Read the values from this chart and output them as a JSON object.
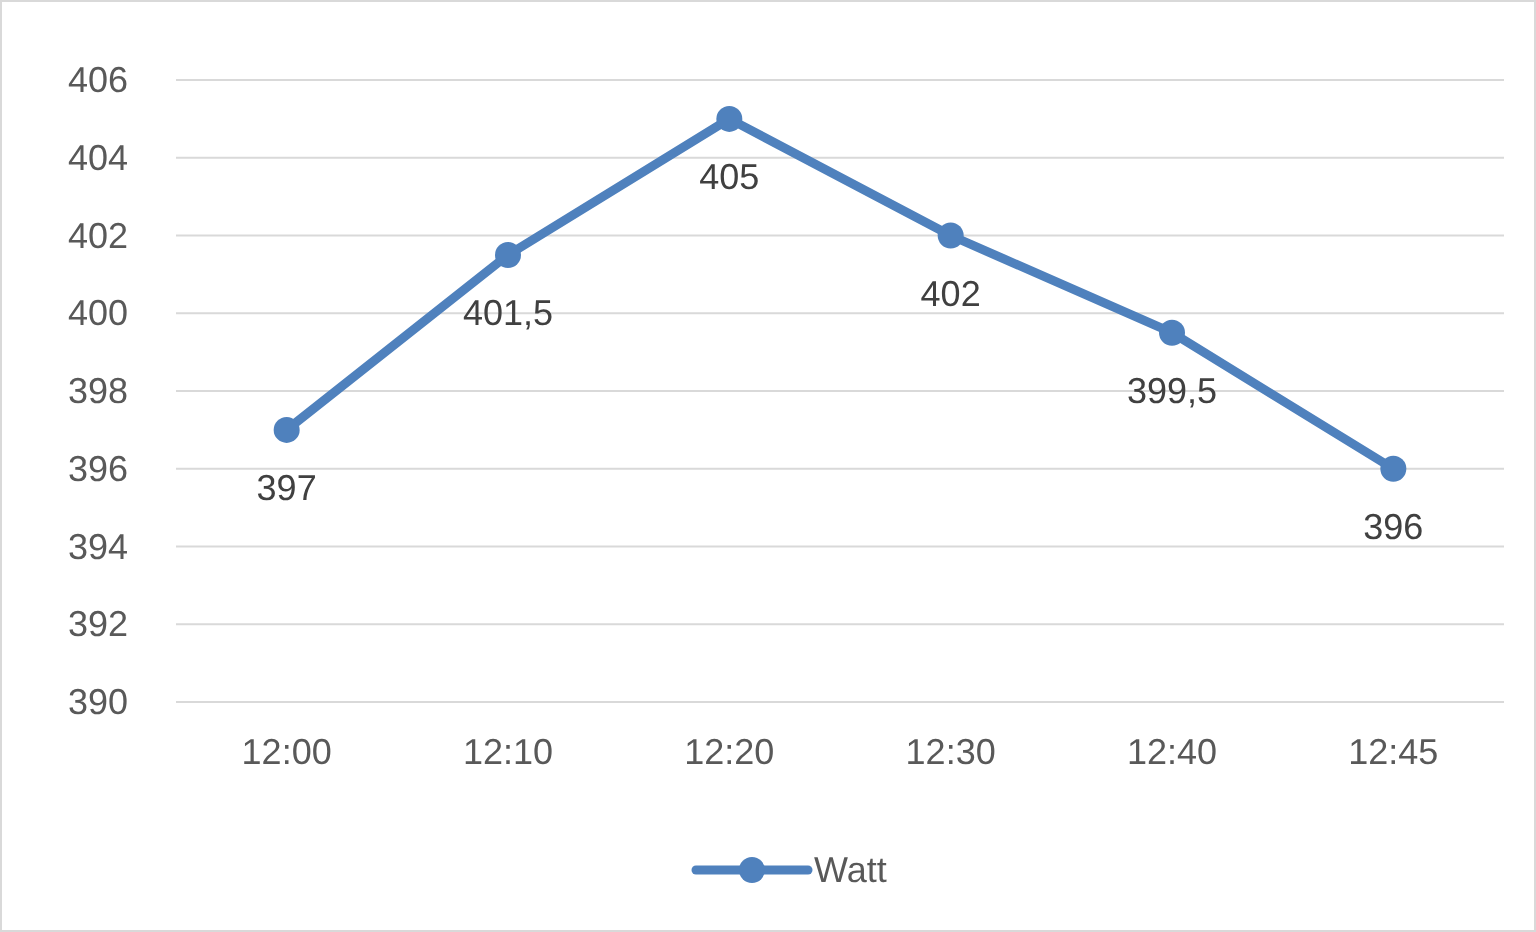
{
  "chart_data": {
    "type": "line",
    "categories": [
      "12:00",
      "12:10",
      "12:20",
      "12:30",
      "12:40",
      "12:45"
    ],
    "series": [
      {
        "name": "Watt",
        "color": "#4f81bd",
        "values": [
          397,
          401.5,
          405,
          402,
          399.5,
          396
        ],
        "value_labels": [
          "397",
          "401,5",
          "405",
          "402",
          "399,5",
          "396"
        ]
      }
    ],
    "ylim": [
      390,
      406
    ],
    "yticks": [
      390,
      392,
      394,
      396,
      398,
      400,
      402,
      404,
      406
    ],
    "grid": "y",
    "legend": "bottom",
    "marker": "circle",
    "line_style": "solid"
  }
}
